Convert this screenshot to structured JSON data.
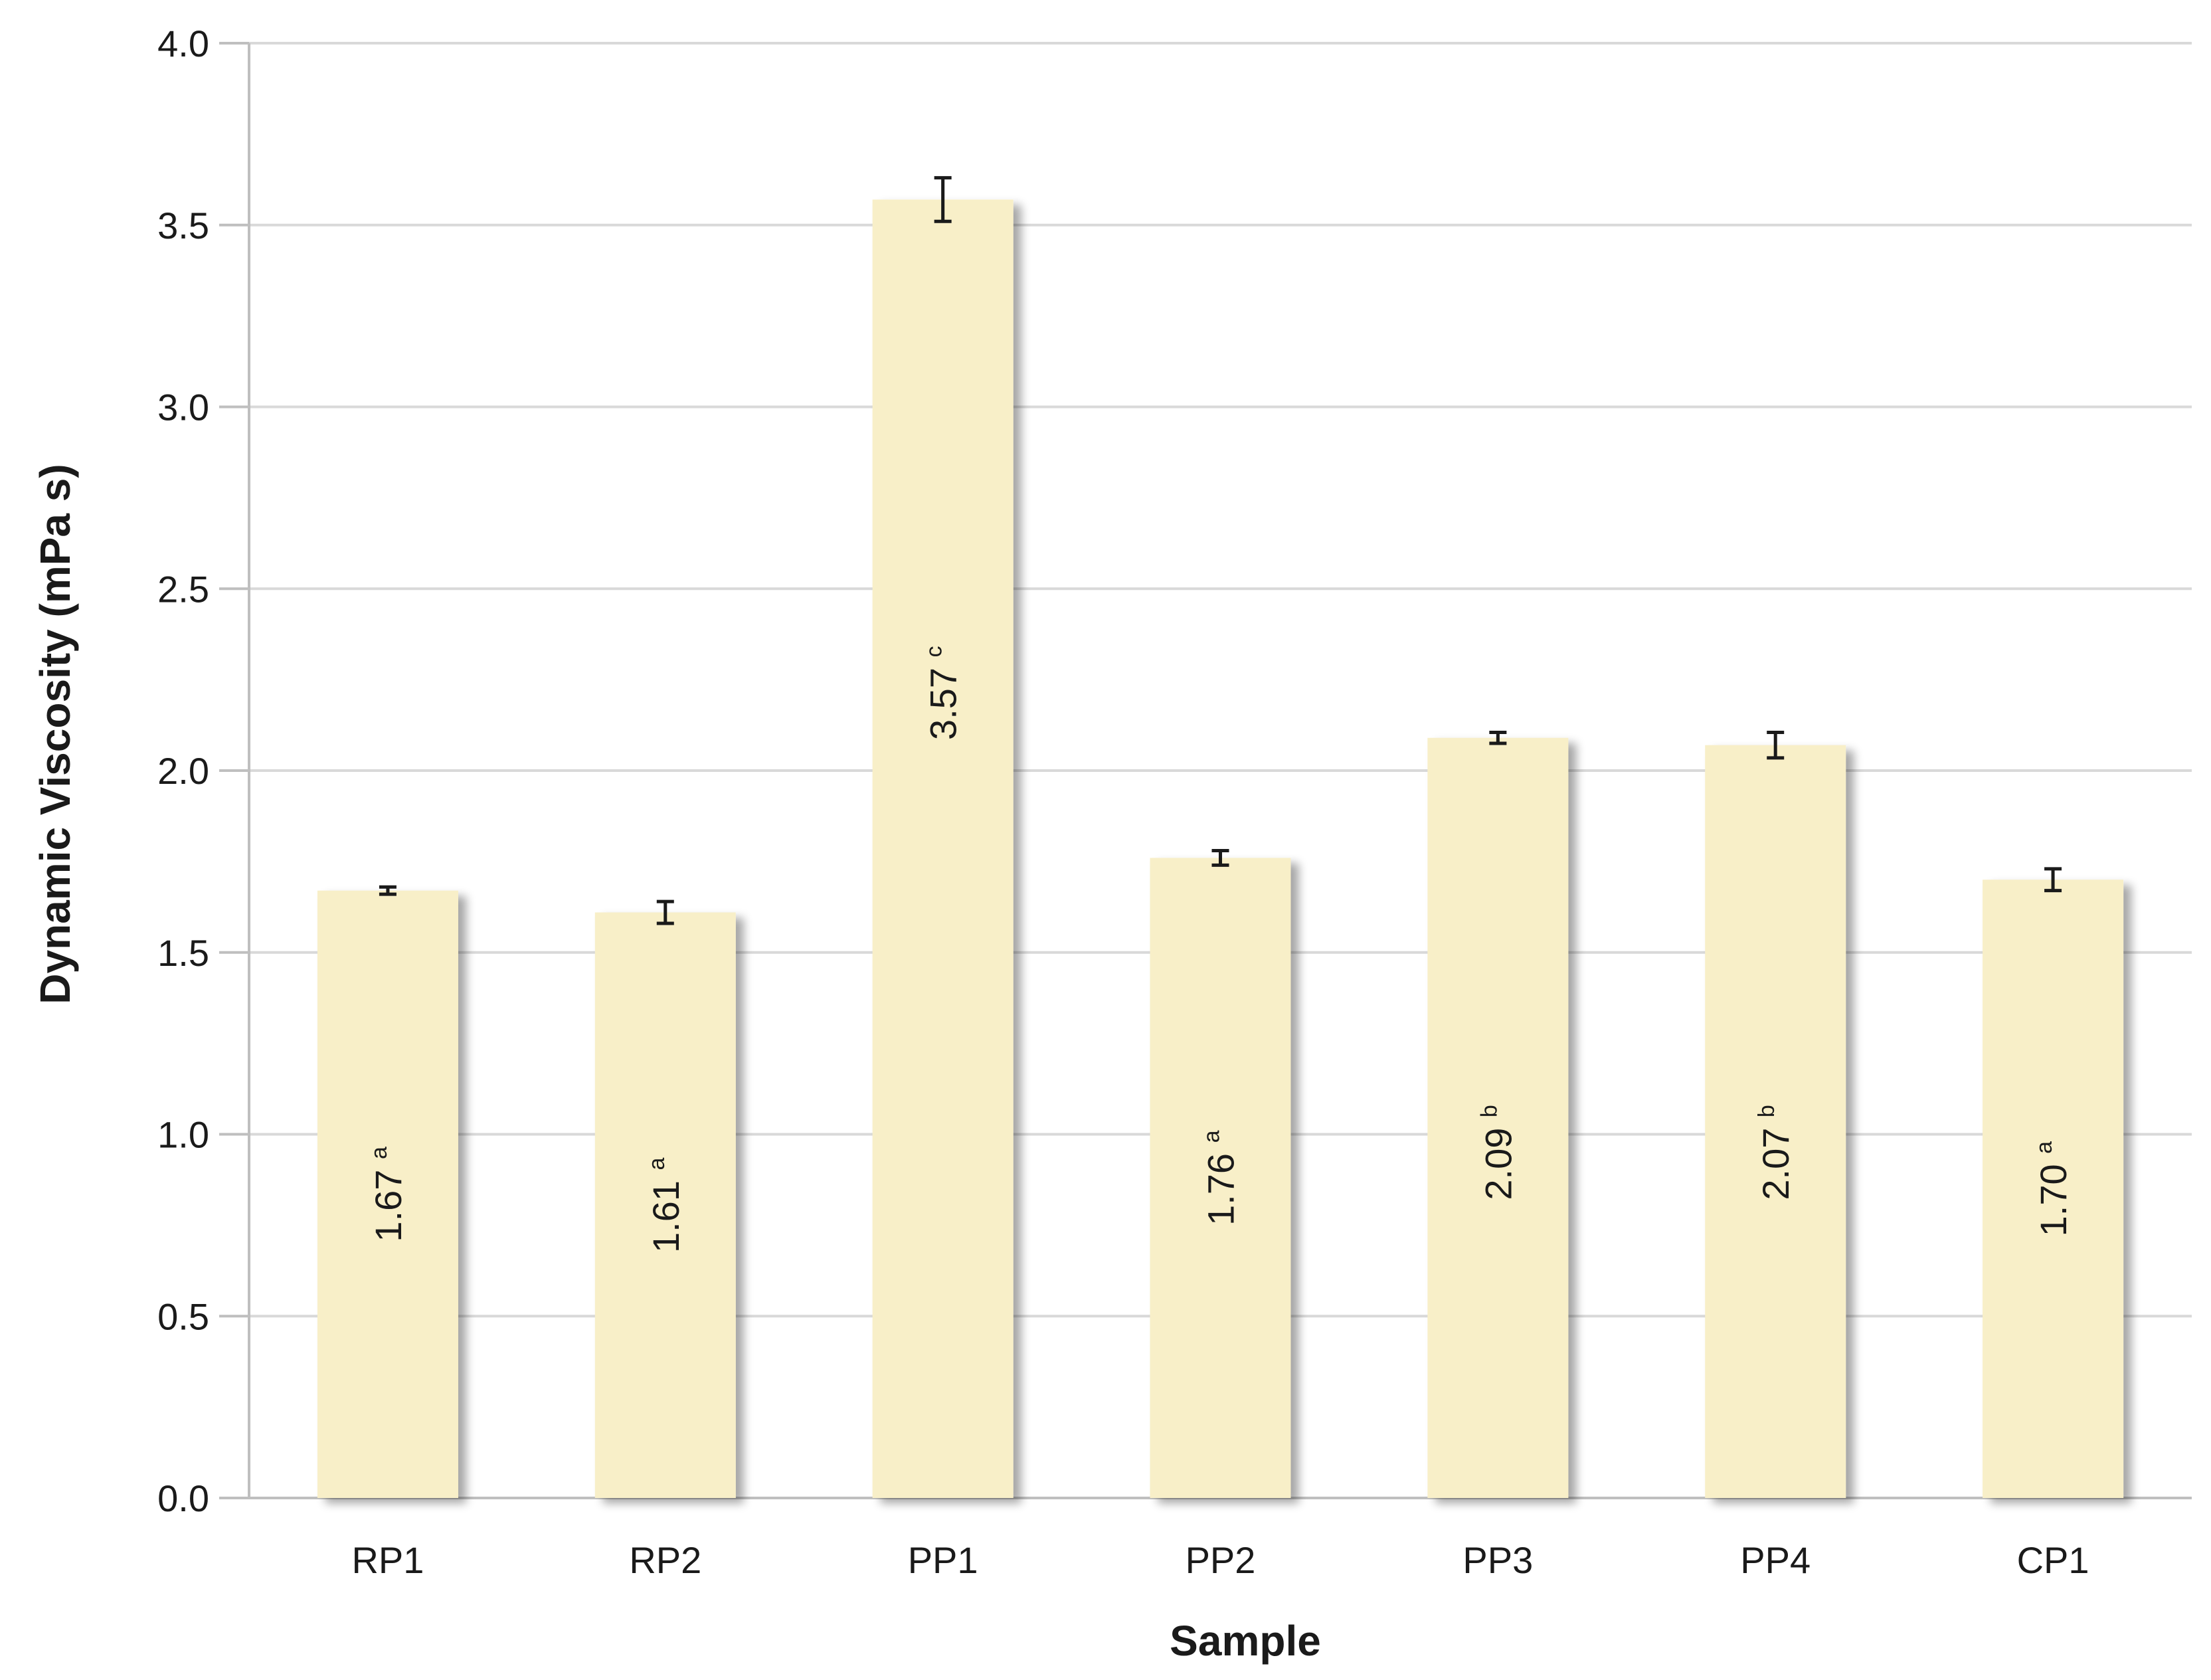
{
  "chart_data": {
    "type": "bar",
    "xlabel": "Sample",
    "ylabel": "Dynamic Viscosity (mPa s)",
    "ylim": [
      0,
      4.0
    ],
    "yticks": [
      "0.0",
      "0.5",
      "1.0",
      "1.5",
      "2.0",
      "2.5",
      "3.0",
      "3.5",
      "4.0"
    ],
    "grid": true,
    "categories": [
      "RP1",
      "RP2",
      "PP1",
      "PP2",
      "PP3",
      "PP4",
      "CP1"
    ],
    "values": [
      1.67,
      1.61,
      3.57,
      1.76,
      2.09,
      2.07,
      1.7
    ],
    "errors": [
      0.01,
      0.03,
      0.06,
      0.02,
      0.015,
      0.035,
      0.03
    ],
    "value_labels": [
      "1.67",
      "1.61",
      "3.57",
      "1.76",
      "2.09",
      "2.07",
      "1.70"
    ],
    "significance_letters": [
      "a",
      "a",
      "c",
      "a",
      "b",
      "b",
      "a"
    ],
    "colors": {
      "bar": "#f8efc8",
      "bar_shadow": "#c9c3b0",
      "grid": "#d9d9d9",
      "axis": "#bfbfbf",
      "error": "#1a1a1a"
    }
  }
}
